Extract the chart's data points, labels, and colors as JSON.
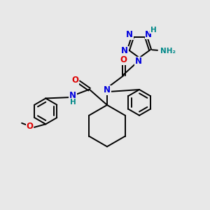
{
  "bg_color": "#e8e8e8",
  "figsize": [
    3.0,
    3.0
  ],
  "dpi": 100,
  "bond_color": "#000000",
  "bond_width": 1.4,
  "N_color": "#0000dd",
  "O_color": "#dd0000",
  "H_color": "#008888",
  "fs": 8.5,
  "fs2": 7.5,
  "xlim": [
    0,
    10
  ],
  "ylim": [
    0,
    10
  ]
}
